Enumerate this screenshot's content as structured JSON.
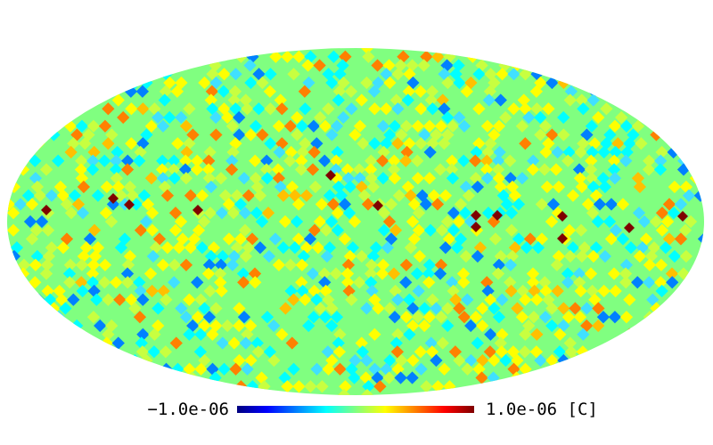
{
  "map": {
    "projection": "mollweide",
    "pixel_scheme": "healpix",
    "colormap": [
      "#00007f",
      "#0000ff",
      "#0080ff",
      "#00ffff",
      "#80ff80",
      "#ffff00",
      "#ff8000",
      "#ff0000",
      "#7f0000"
    ],
    "background": "#ffffff",
    "center_tone": "#80ff80"
  },
  "colorbar": {
    "min_label": "−1.0e-06",
    "max_label": "1.0e-06",
    "unit_label": "[C]"
  }
}
